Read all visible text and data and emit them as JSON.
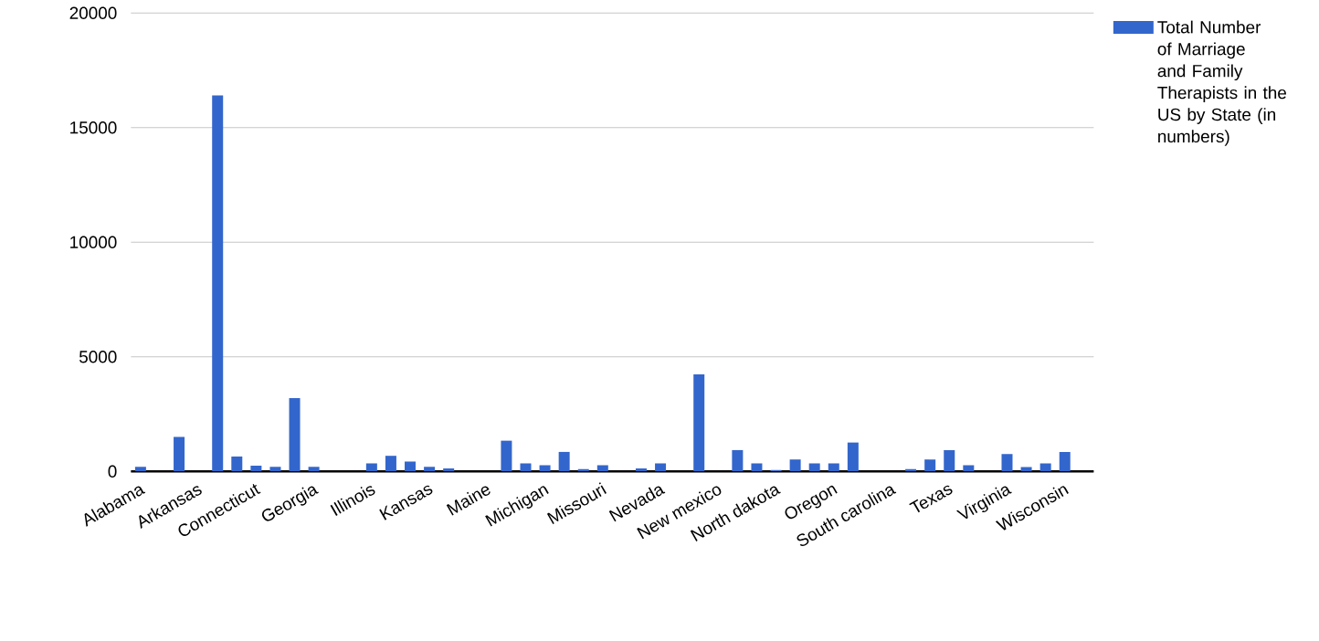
{
  "chart_data": {
    "type": "bar",
    "categories": [
      "Alabama",
      null,
      null,
      "Arkansas",
      null,
      null,
      "Connecticut",
      null,
      null,
      "Georgia",
      null,
      null,
      "Illinois",
      null,
      null,
      "Kansas",
      null,
      null,
      "Maine",
      null,
      null,
      "Michigan",
      null,
      null,
      "Missouri",
      null,
      null,
      "Nevada",
      null,
      null,
      "New mexico",
      null,
      null,
      "North dakota",
      null,
      null,
      "Oregon",
      null,
      null,
      "South carolina",
      null,
      null,
      "Texas",
      null,
      null,
      "Virginia",
      null,
      null,
      "Wisconsin",
      null
    ],
    "series": [
      {
        "name": "Total Number of Marriage and Family Therapists in the US by State (in numbers)",
        "color": "#3366cc",
        "values": [
          200,
          0,
          1500,
          0,
          16400,
          650,
          250,
          200,
          3200,
          200,
          0,
          0,
          350,
          680,
          430,
          200,
          130,
          0,
          0,
          1340,
          350,
          270,
          850,
          100,
          270,
          0,
          130,
          350,
          null,
          4230,
          null,
          930,
          350,
          60,
          520,
          350,
          350,
          1260,
          0,
          null,
          100,
          520,
          930,
          270,
          0,
          760,
          190,
          350,
          850,
          0
        ]
      }
    ],
    "ylim": [
      0,
      20000
    ],
    "yticks": [
      0,
      5000,
      10000,
      15000,
      20000
    ],
    "grid": "y",
    "legend": "top right"
  }
}
